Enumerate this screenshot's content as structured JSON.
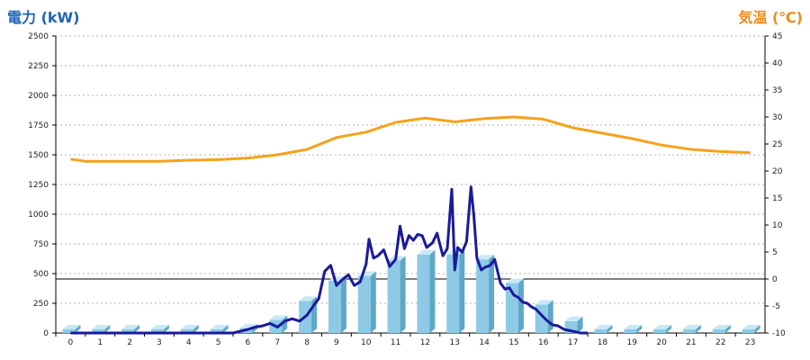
{
  "chart_data": {
    "type": "bar",
    "left_axis": {
      "label": "電力 (kW)",
      "min": 0,
      "max": 2500,
      "ticks": [
        0,
        250,
        500,
        750,
        1000,
        1250,
        1500,
        1750,
        2000,
        2250,
        2500
      ]
    },
    "right_axis": {
      "label": "気温 (℃)",
      "min": -10,
      "max": 45,
      "ticks": [
        -10,
        -5,
        0,
        5,
        10,
        15,
        20,
        25,
        30,
        35,
        40,
        45
      ]
    },
    "categories": [
      "0",
      "1",
      "2",
      "3",
      "4",
      "5",
      "6",
      "7",
      "8",
      "9",
      "10",
      "11",
      "12",
      "13",
      "14",
      "15",
      "16",
      "17",
      "18",
      "19",
      "20",
      "21",
      "22",
      "23"
    ],
    "series": [
      {
        "type": "bar",
        "axis": "left",
        "values": [
          0,
          0,
          0,
          0,
          0,
          0,
          40,
          110,
          270,
          440,
          480,
          610,
          660,
          660,
          620,
          420,
          240,
          100,
          0,
          0,
          0,
          0,
          0,
          0
        ]
      },
      {
        "type": "line",
        "axis": "left",
        "x": [
          0,
          1,
          2,
          3,
          4,
          5,
          5.5,
          6,
          6.25,
          6.5,
          6.75,
          7,
          7.25,
          7.5,
          7.75,
          8,
          8.25,
          8.4,
          8.6,
          8.8,
          9,
          9.2,
          9.4,
          9.6,
          9.8,
          10,
          10.1,
          10.25,
          10.4,
          10.6,
          10.8,
          11,
          11.15,
          11.3,
          11.45,
          11.6,
          11.75,
          11.9,
          12.05,
          12.25,
          12.4,
          12.6,
          12.75,
          12.9,
          13,
          13.1,
          13.25,
          13.4,
          13.55,
          13.65,
          13.75,
          13.9,
          14,
          14.2,
          14.35,
          14.55,
          14.7,
          14.85,
          15,
          15.15,
          15.3,
          15.45,
          15.6,
          15.75,
          15.9,
          16.1,
          16.3,
          16.5,
          16.7,
          16.9,
          17.1,
          17.25,
          17.4,
          17.5
        ],
        "values": [
          0,
          0,
          0,
          0,
          0,
          0,
          0,
          30,
          50,
          60,
          80,
          50,
          100,
          120,
          100,
          150,
          240,
          290,
          520,
          570,
          400,
          450,
          490,
          400,
          430,
          580,
          790,
          630,
          650,
          700,
          560,
          620,
          900,
          710,
          820,
          780,
          830,
          820,
          720,
          760,
          840,
          650,
          710,
          1210,
          530,
          720,
          680,
          770,
          1230,
          980,
          630,
          530,
          550,
          570,
          620,
          420,
          370,
          380,
          320,
          300,
          260,
          250,
          220,
          200,
          160,
          110,
          70,
          60,
          30,
          20,
          10,
          0,
          0,
          0
        ]
      },
      {
        "type": "line",
        "axis": "right",
        "x": [
          0,
          0.5,
          1,
          2,
          3,
          4,
          5,
          6,
          7,
          8,
          9,
          10,
          11,
          12,
          13,
          14,
          15,
          16,
          17,
          18,
          19,
          20,
          21,
          22,
          23
        ],
        "values": [
          22.2,
          21.8,
          21.8,
          21.8,
          21.8,
          22,
          22.1,
          22.4,
          23,
          24,
          26.2,
          27.2,
          29,
          29.8,
          29.1,
          29.7,
          30,
          29.6,
          28,
          27,
          26,
          24.8,
          24,
          23.6,
          23.4
        ]
      }
    ],
    "grid": true,
    "colors": {
      "bar_front": "#8ecae6",
      "bar_side": "#5fa7c8",
      "bar_top": "#c9e8f6",
      "power_line": "#1a1a9b",
      "temp_line": "#f5a21b",
      "left_label": "#1f63b6",
      "right_label": "#f08a1c"
    }
  }
}
